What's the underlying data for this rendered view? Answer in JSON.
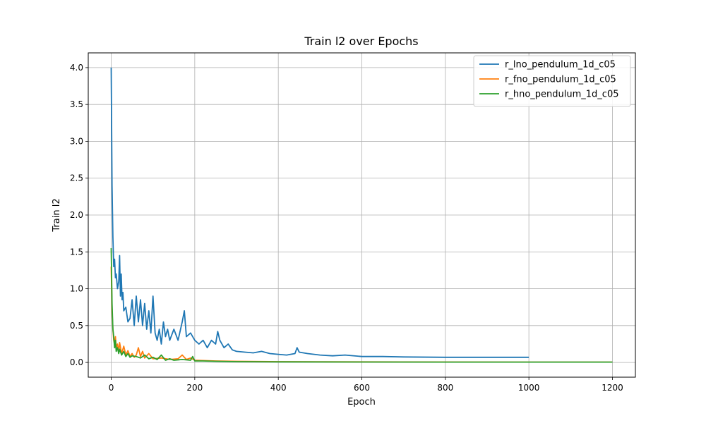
{
  "chart_data": {
    "type": "line",
    "title": "Train l2 over Epochs",
    "xlabel": "Epoch",
    "ylabel": "Train l2",
    "xlim": [
      -55,
      1255
    ],
    "ylim": [
      -0.2,
      4.2
    ],
    "xticks": [
      0,
      200,
      400,
      600,
      800,
      1000,
      1200
    ],
    "yticks": [
      0.0,
      0.5,
      1.0,
      1.5,
      2.0,
      2.5,
      3.0,
      3.5,
      4.0
    ],
    "xtick_labels": [
      "0",
      "200",
      "400",
      "600",
      "800",
      "1000",
      "1200"
    ],
    "ytick_labels": [
      "0.0",
      "0.5",
      "1.0",
      "1.5",
      "2.0",
      "2.5",
      "3.0",
      "3.5",
      "4.0"
    ],
    "grid": true,
    "legend_position": "top-right",
    "series": [
      {
        "name": "r_lno_pendulum_1d_c05",
        "color": "#1f77b4",
        "x": [
          0,
          2,
          4,
          6,
          8,
          10,
          12,
          15,
          18,
          20,
          22,
          24,
          26,
          28,
          30,
          35,
          40,
          45,
          50,
          55,
          60,
          65,
          70,
          75,
          80,
          85,
          90,
          95,
          100,
          105,
          110,
          115,
          120,
          125,
          130,
          135,
          140,
          150,
          160,
          170,
          175,
          180,
          190,
          200,
          210,
          220,
          230,
          240,
          250,
          255,
          260,
          270,
          280,
          290,
          300,
          320,
          340,
          360,
          380,
          400,
          420,
          440,
          445,
          450,
          470,
          500,
          530,
          560,
          600,
          650,
          700,
          800,
          900,
          1000
        ],
        "y": [
          4.0,
          2.4,
          1.7,
          1.3,
          1.4,
          1.15,
          1.2,
          1.0,
          1.1,
          1.45,
          0.9,
          1.2,
          0.85,
          0.95,
          0.7,
          0.75,
          0.55,
          0.6,
          0.85,
          0.5,
          0.9,
          0.55,
          0.85,
          0.5,
          0.8,
          0.45,
          0.7,
          0.4,
          0.9,
          0.4,
          0.3,
          0.45,
          0.25,
          0.55,
          0.35,
          0.45,
          0.3,
          0.45,
          0.3,
          0.55,
          0.7,
          0.35,
          0.4,
          0.3,
          0.25,
          0.3,
          0.2,
          0.3,
          0.25,
          0.42,
          0.3,
          0.2,
          0.25,
          0.17,
          0.15,
          0.14,
          0.13,
          0.15,
          0.12,
          0.11,
          0.1,
          0.12,
          0.2,
          0.14,
          0.12,
          0.1,
          0.09,
          0.1,
          0.08,
          0.08,
          0.075,
          0.07,
          0.07,
          0.07
        ]
      },
      {
        "name": "r_fno_pendulum_1d_c05",
        "color": "#ff7f0e",
        "x": [
          0,
          2,
          4,
          6,
          8,
          10,
          12,
          15,
          18,
          20,
          25,
          30,
          35,
          40,
          45,
          50,
          55,
          60,
          65,
          70,
          75,
          80,
          90,
          100,
          120,
          140,
          160,
          170,
          180,
          190,
          200,
          250,
          300,
          400,
          600,
          800,
          1000,
          1200
        ],
        "y": [
          1.3,
          0.7,
          0.45,
          0.3,
          0.25,
          0.35,
          0.2,
          0.25,
          0.15,
          0.27,
          0.12,
          0.22,
          0.1,
          0.16,
          0.08,
          0.12,
          0.07,
          0.1,
          0.2,
          0.08,
          0.15,
          0.06,
          0.12,
          0.05,
          0.06,
          0.04,
          0.05,
          0.1,
          0.04,
          0.06,
          0.03,
          0.02,
          0.015,
          0.01,
          0.008,
          0.006,
          0.005,
          0.005
        ]
      },
      {
        "name": "r_hno_pendulum_1d_c05",
        "color": "#2ca02c",
        "x": [
          0,
          2,
          4,
          6,
          8,
          10,
          12,
          15,
          18,
          20,
          25,
          30,
          35,
          40,
          45,
          50,
          60,
          70,
          80,
          90,
          100,
          110,
          120,
          130,
          140,
          150,
          170,
          190,
          195,
          200,
          220,
          250,
          300,
          400,
          600,
          800,
          1000,
          1200
        ],
        "y": [
          1.55,
          0.8,
          0.45,
          0.35,
          0.2,
          0.3,
          0.15,
          0.2,
          0.12,
          0.18,
          0.1,
          0.15,
          0.08,
          0.12,
          0.07,
          0.09,
          0.08,
          0.06,
          0.1,
          0.05,
          0.07,
          0.04,
          0.1,
          0.03,
          0.05,
          0.03,
          0.04,
          0.03,
          0.08,
          0.02,
          0.02,
          0.015,
          0.01,
          0.008,
          0.006,
          0.005,
          0.005,
          0.005
        ]
      }
    ]
  }
}
